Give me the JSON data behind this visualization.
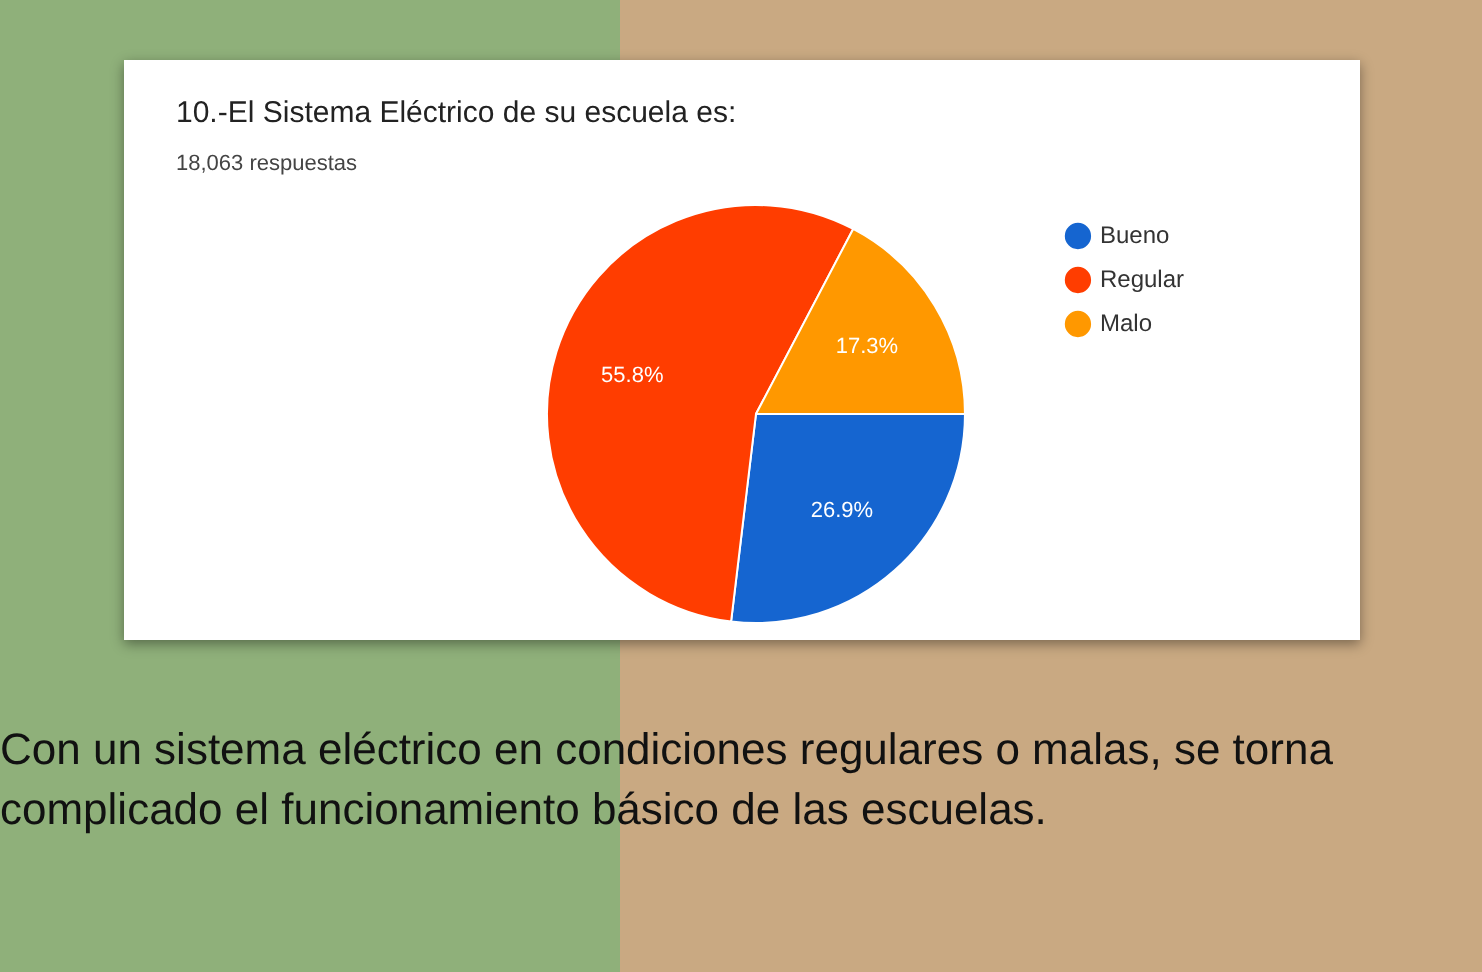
{
  "chart_data": {
    "type": "pie",
    "title": "10.-El Sistema Eléctrico de su escuela es:",
    "subtitle": "18,063 respuestas",
    "categories": [
      "Bueno",
      "Regular",
      "Malo"
    ],
    "values": [
      26.9,
      55.8,
      17.3
    ],
    "colors": [
      "#1565d0",
      "#ff3d00",
      "#ff9800"
    ],
    "value_labels": [
      "26.9%",
      "55.8%",
      "17.3%"
    ],
    "legend": "top right",
    "annotations": [
      "Con un sistema eléctrico en condiciones regulares o malas, se torna complicado el funcionamiento básico de las escuelas."
    ]
  }
}
